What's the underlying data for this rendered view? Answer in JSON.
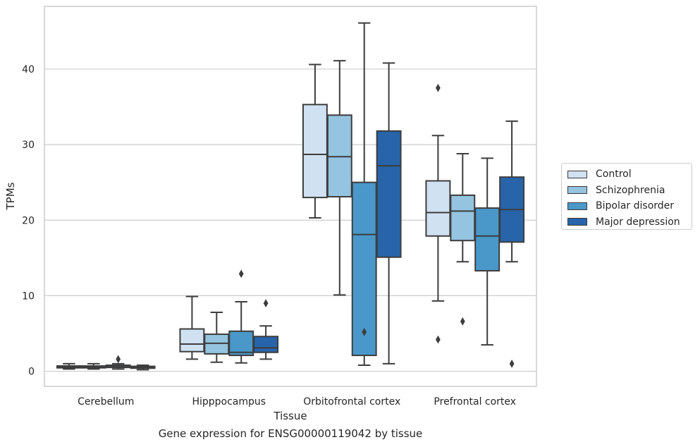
{
  "chart_data": {
    "type": "box",
    "title": "",
    "caption": "Gene expression for ENSG00000119042 by tissue",
    "xlabel": "Tissue",
    "ylabel": "TPMs",
    "ylim": [
      -2,
      48.3
    ],
    "yticks": [
      0,
      10,
      20,
      30,
      40
    ],
    "grid": true,
    "legend_position": "right",
    "categories": [
      "Cerebellum",
      "Hipppocampus",
      "Orbitofrontal cortex",
      "Prefrontal cortex"
    ],
    "series": [
      {
        "name": "Control",
        "color": "#d0e1f2",
        "boxes": [
          {
            "whislo": 0.3,
            "q1": 0.45,
            "med": 0.55,
            "q3": 0.7,
            "whishi": 1.0,
            "fliers": []
          },
          {
            "whislo": 1.6,
            "q1": 2.6,
            "med": 3.6,
            "q3": 5.6,
            "whishi": 9.9,
            "fliers": []
          },
          {
            "whislo": 20.3,
            "q1": 23.0,
            "med": 28.7,
            "q3": 35.3,
            "whishi": 40.6,
            "fliers": []
          },
          {
            "whislo": 9.3,
            "q1": 17.9,
            "med": 21.0,
            "q3": 25.2,
            "whishi": 31.2,
            "fliers": [
              37.5,
              4.2
            ]
          }
        ]
      },
      {
        "name": "Schizophrenia",
        "color": "#94c4df",
        "boxes": [
          {
            "whislo": 0.3,
            "q1": 0.45,
            "med": 0.55,
            "q3": 0.7,
            "whishi": 1.0,
            "fliers": []
          },
          {
            "whislo": 1.2,
            "q1": 2.3,
            "med": 3.7,
            "q3": 4.9,
            "whishi": 7.8,
            "fliers": []
          },
          {
            "whislo": 10.1,
            "q1": 23.1,
            "med": 28.4,
            "q3": 33.9,
            "whishi": 41.1,
            "fliers": []
          },
          {
            "whislo": 14.5,
            "q1": 17.3,
            "med": 21.2,
            "q3": 23.3,
            "whishi": 28.8,
            "fliers": [
              6.6
            ]
          }
        ]
      },
      {
        "name": "Bipolar disorder",
        "color": "#4a98c9",
        "boxes": [
          {
            "whislo": 0.3,
            "q1": 0.5,
            "med": 0.6,
            "q3": 0.8,
            "whishi": 1.0,
            "fliers": [
              1.6
            ]
          },
          {
            "whislo": 1.1,
            "q1": 2.1,
            "med": 2.5,
            "q3": 5.3,
            "whishi": 9.2,
            "fliers": [
              12.9
            ]
          },
          {
            "whislo": 0.8,
            "q1": 2.1,
            "med": 18.1,
            "q3": 25.0,
            "whishi": 46.1,
            "fliers": [
              5.2
            ]
          },
          {
            "whislo": 3.5,
            "q1": 13.3,
            "med": 17.9,
            "q3": 21.6,
            "whishi": 28.2,
            "fliers": []
          }
        ]
      },
      {
        "name": "Major depression",
        "color": "#2764a9",
        "boxes": [
          {
            "whislo": 0.2,
            "q1": 0.4,
            "med": 0.5,
            "q3": 0.65,
            "whishi": 0.8,
            "fliers": []
          },
          {
            "whislo": 1.6,
            "q1": 2.5,
            "med": 3.1,
            "q3": 4.6,
            "whishi": 6.0,
            "fliers": [
              9.0
            ]
          },
          {
            "whislo": 1.0,
            "q1": 15.1,
            "med": 27.2,
            "q3": 31.8,
            "whishi": 40.8,
            "fliers": []
          },
          {
            "whislo": 14.5,
            "q1": 17.1,
            "med": 21.4,
            "q3": 25.7,
            "whishi": 33.1,
            "fliers": [
              1.0
            ]
          }
        ]
      }
    ]
  }
}
